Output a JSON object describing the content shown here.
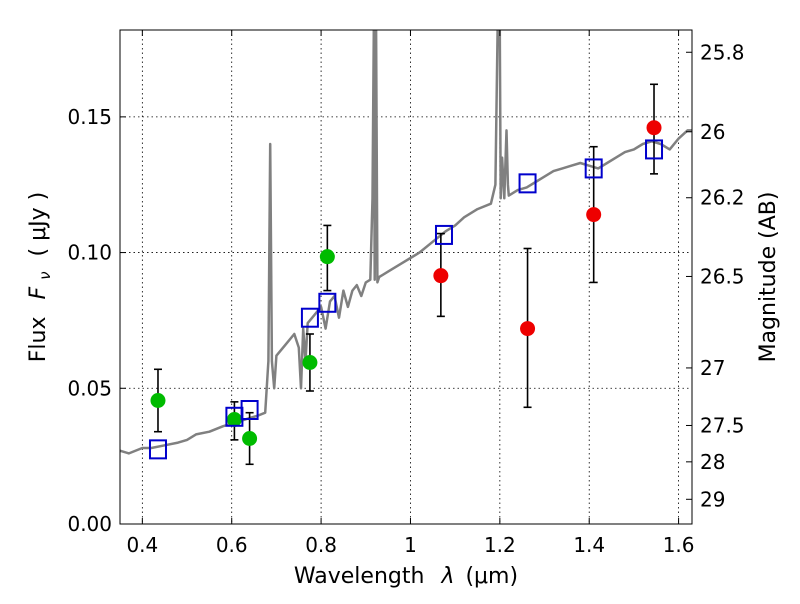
{
  "chart_data": {
    "type": "scatter",
    "xlabel_prefix": "Wavelength",
    "xlabel_symbol": "λ",
    "xlabel_unit": "(μm)",
    "ylabel_prefix": "Flux",
    "ylabel_symbol": "F",
    "ylabel_sub": "ν",
    "ylabel_unit": "( μJy )",
    "y2label": "Magnitude (AB)",
    "xlim": [
      0.35,
      1.63
    ],
    "ylim": [
      0.0,
      0.182
    ],
    "grid": true,
    "x_ticks": [
      {
        "value": 0.4,
        "label": "0.4"
      },
      {
        "value": 0.6,
        "label": "0.6"
      },
      {
        "value": 0.8,
        "label": "0.8"
      },
      {
        "value": 1.0,
        "label": "1"
      },
      {
        "value": 1.2,
        "label": "1.2"
      },
      {
        "value": 1.4,
        "label": "1.4"
      },
      {
        "value": 1.6,
        "label": "1.6"
      }
    ],
    "y_ticks": [
      {
        "value": 0.0,
        "label": "0.00"
      },
      {
        "value": 0.05,
        "label": "0.05"
      },
      {
        "value": 0.1,
        "label": "0.10"
      },
      {
        "value": 0.15,
        "label": "0.15"
      }
    ],
    "y2_ticks": [
      {
        "label": "25.8",
        "flux": 0.1738
      },
      {
        "label": "26",
        "flux": 0.1445
      },
      {
        "label": "26.2",
        "flux": 0.1202
      },
      {
        "label": "26.5",
        "flux": 0.0912
      },
      {
        "label": "27",
        "flux": 0.0575
      },
      {
        "label": "27.5",
        "flux": 0.0363
      },
      {
        "label": "28",
        "flux": 0.0229
      },
      {
        "label": "29",
        "flux": 0.0091
      }
    ],
    "series": [
      {
        "name": "model spectrum",
        "kind": "line",
        "color": "#808080",
        "x": [
          0.35,
          0.37,
          0.4,
          0.42,
          0.45,
          0.48,
          0.5,
          0.52,
          0.55,
          0.58,
          0.6,
          0.62,
          0.64,
          0.66,
          0.675,
          0.682,
          0.686,
          0.69,
          0.695,
          0.7,
          0.72,
          0.74,
          0.75,
          0.755,
          0.76,
          0.765,
          0.77,
          0.78,
          0.79,
          0.8,
          0.81,
          0.82,
          0.83,
          0.84,
          0.85,
          0.86,
          0.87,
          0.88,
          0.89,
          0.9,
          0.91,
          0.915,
          0.918,
          0.92,
          0.923,
          0.926,
          0.93,
          0.95,
          0.98,
          1.0,
          1.02,
          1.05,
          1.08,
          1.1,
          1.12,
          1.15,
          1.18,
          1.19,
          1.195,
          1.2,
          1.202,
          1.205,
          1.21,
          1.215,
          1.218,
          1.22,
          1.24,
          1.26,
          1.28,
          1.3,
          1.32,
          1.34,
          1.36,
          1.38,
          1.4,
          1.42,
          1.44,
          1.46,
          1.48,
          1.5,
          1.52,
          1.54,
          1.56,
          1.58,
          1.6,
          1.62,
          1.63
        ],
        "y": [
          0.027,
          0.026,
          0.028,
          0.028,
          0.029,
          0.03,
          0.031,
          0.033,
          0.034,
          0.036,
          0.037,
          0.038,
          0.039,
          0.04,
          0.041,
          0.06,
          0.14,
          0.06,
          0.05,
          0.062,
          0.066,
          0.07,
          0.065,
          0.05,
          0.072,
          0.06,
          0.074,
          0.076,
          0.078,
          0.08,
          0.072,
          0.082,
          0.084,
          0.076,
          0.086,
          0.08,
          0.086,
          0.088,
          0.084,
          0.089,
          0.09,
          0.12,
          0.182,
          0.09,
          0.182,
          0.089,
          0.091,
          0.093,
          0.096,
          0.098,
          0.1,
          0.104,
          0.108,
          0.11,
          0.113,
          0.116,
          0.118,
          0.125,
          0.182,
          0.182,
          0.12,
          0.135,
          0.12,
          0.145,
          0.125,
          0.121,
          0.123,
          0.124,
          0.126,
          0.128,
          0.13,
          0.131,
          0.132,
          0.133,
          0.132,
          0.131,
          0.133,
          0.135,
          0.137,
          0.138,
          0.14,
          0.141,
          0.14,
          0.138,
          0.142,
          0.145,
          0.145
        ]
      },
      {
        "name": "green points",
        "kind": "points",
        "color": "#00bb00",
        "points": [
          {
            "x": 0.435,
            "y": 0.0455,
            "lo": 0.034,
            "hi": 0.057
          },
          {
            "x": 0.606,
            "y": 0.0385,
            "lo": 0.031,
            "hi": 0.045
          },
          {
            "x": 0.64,
            "y": 0.0315,
            "lo": 0.022,
            "hi": 0.041
          },
          {
            "x": 0.775,
            "y": 0.0595,
            "lo": 0.049,
            "hi": 0.07
          },
          {
            "x": 0.814,
            "y": 0.0985,
            "lo": 0.086,
            "hi": 0.11
          }
        ]
      },
      {
        "name": "red points",
        "kind": "points",
        "color": "#ee0000",
        "points": [
          {
            "x": 1.068,
            "y": 0.0915,
            "lo": 0.0765,
            "hi": 0.107
          },
          {
            "x": 1.262,
            "y": 0.072,
            "lo": 0.043,
            "hi": 0.1015
          },
          {
            "x": 1.41,
            "y": 0.114,
            "lo": 0.089,
            "hi": 0.139
          },
          {
            "x": 1.545,
            "y": 0.146,
            "lo": 0.129,
            "hi": 0.162
          }
        ]
      },
      {
        "name": "model photometry",
        "kind": "squares",
        "color": "#0000cc",
        "points": [
          {
            "x": 0.435,
            "y": 0.0275
          },
          {
            "x": 0.606,
            "y": 0.0395
          },
          {
            "x": 0.64,
            "y": 0.042
          },
          {
            "x": 0.775,
            "y": 0.076
          },
          {
            "x": 0.814,
            "y": 0.0815
          },
          {
            "x": 1.075,
            "y": 0.1065
          },
          {
            "x": 1.262,
            "y": 0.1255
          },
          {
            "x": 1.41,
            "y": 0.131
          },
          {
            "x": 1.545,
            "y": 0.138
          }
        ]
      }
    ]
  }
}
